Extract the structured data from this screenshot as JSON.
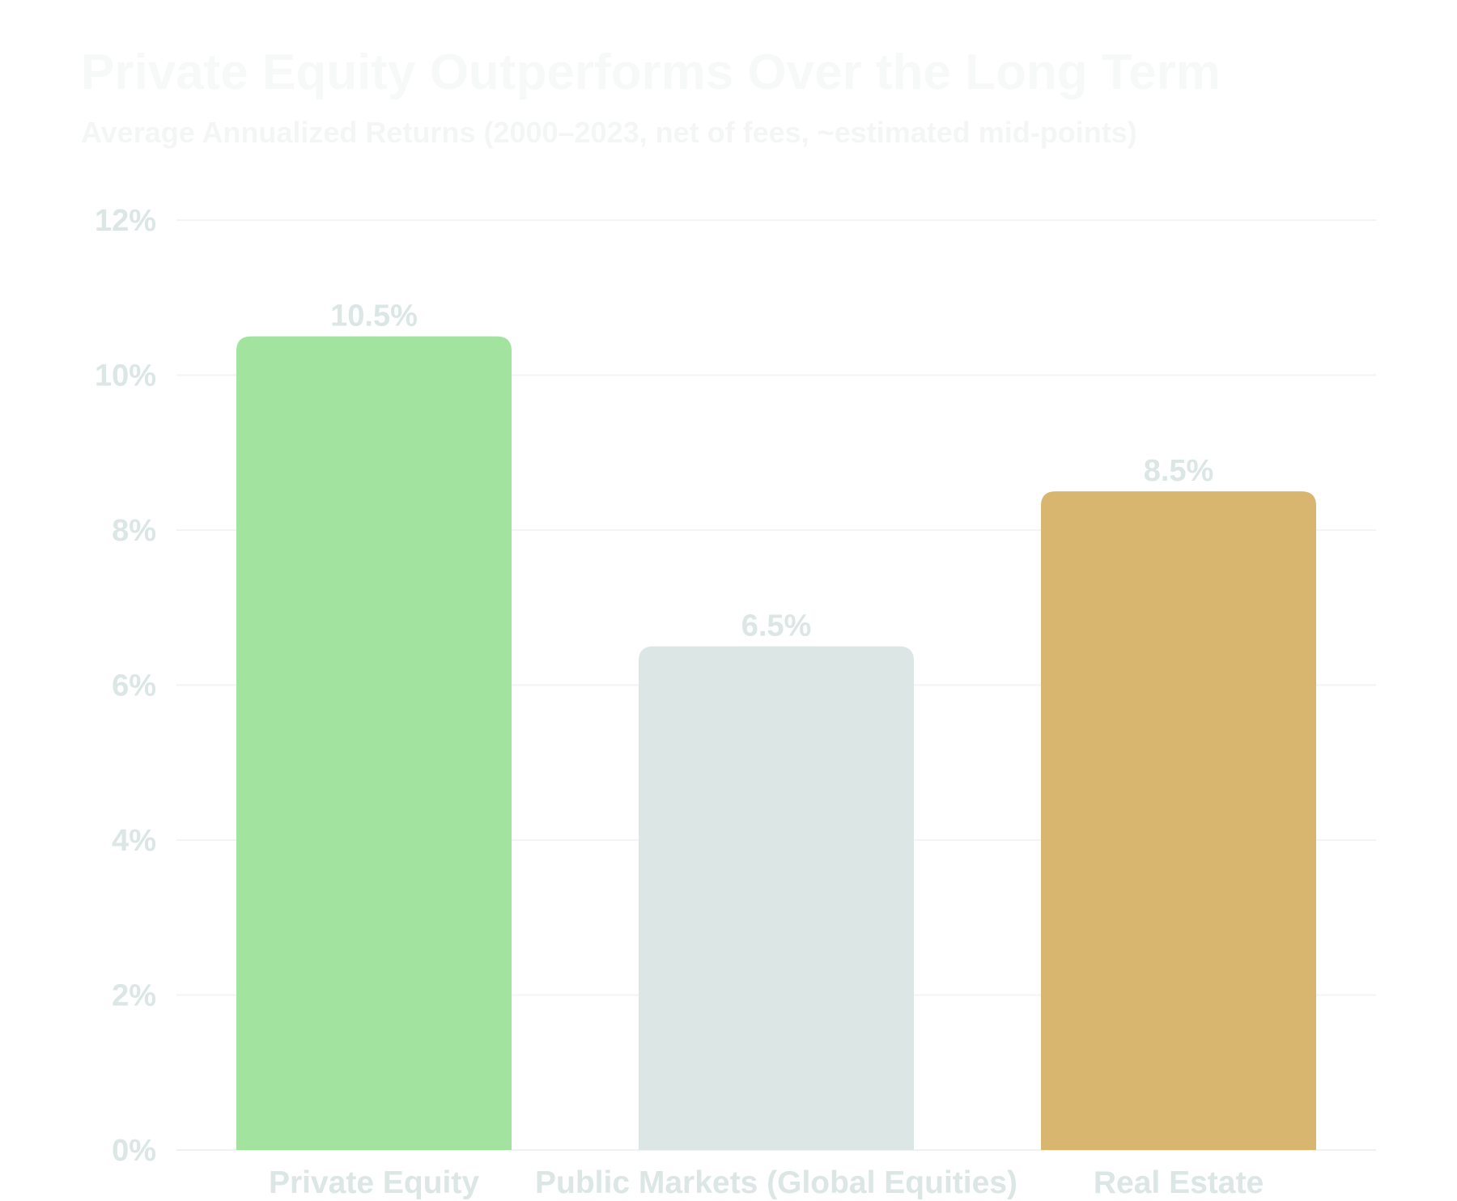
{
  "chart_data": {
    "type": "bar",
    "title": "Private Equity Outperforms Over the Long Term",
    "subtitle": "Average Annualized Returns (2000–2023, net of fees, ~estimated mid-points)",
    "xlabel": "",
    "ylabel": "",
    "categories": [
      "Private Equity",
      "Public Markets (Global Equities)",
      "Real Estate"
    ],
    "values": [
      10.5,
      6.5,
      8.5
    ],
    "value_labels": [
      "10.5%",
      "6.5%",
      "8.5%"
    ],
    "bar_colors": [
      "#a2e39f",
      "#dbe6e5",
      "#d9b66f"
    ],
    "ylim": [
      0,
      12
    ],
    "y_ticks": [
      0,
      2,
      4,
      6,
      8,
      10,
      12
    ],
    "y_tick_labels": [
      "0%",
      "2%",
      "4%",
      "6%",
      "8%",
      "10%",
      "12%"
    ],
    "grid": true,
    "legend": "none"
  }
}
